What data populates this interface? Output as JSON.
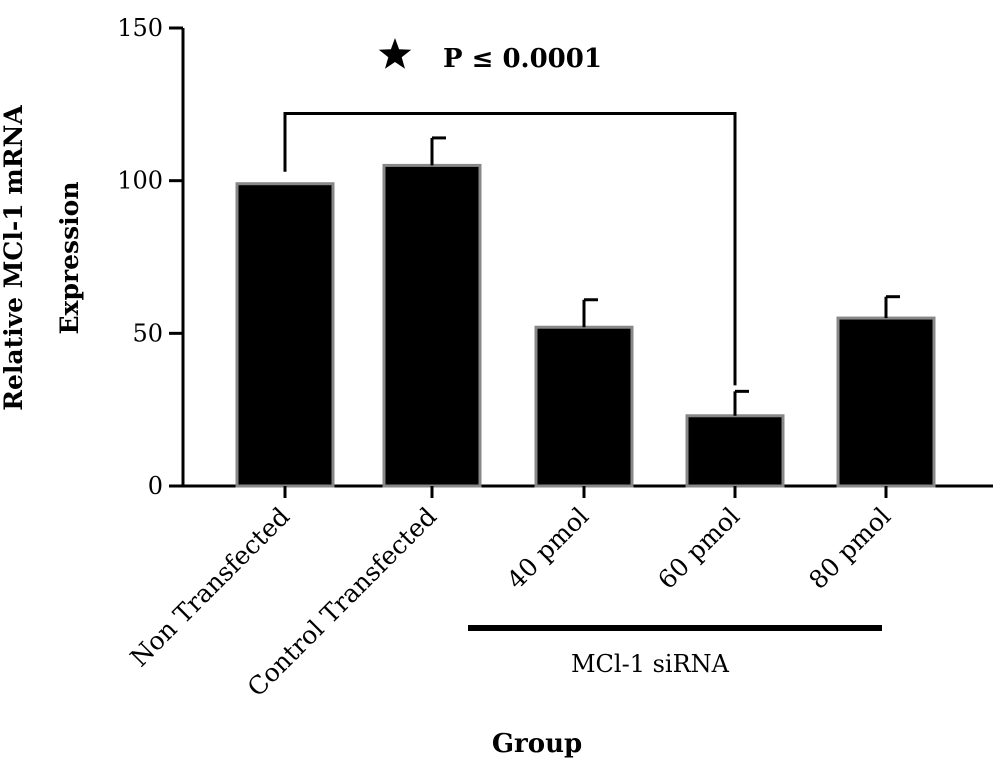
{
  "chart_data": {
    "type": "bar",
    "categories": [
      "Non Transfected",
      "Control Transfected",
      "40 pmol",
      "60 pmol",
      "80 pmol"
    ],
    "values": [
      99,
      105,
      52,
      23,
      55
    ],
    "errors": [
      0,
      9,
      9,
      8,
      7
    ],
    "xlabel": "Group",
    "ylabel_lines": [
      "Relative MCl-1 mRNA",
      "Expression"
    ],
    "ylim": [
      0,
      150
    ],
    "yticks": [
      0,
      50,
      100,
      150
    ],
    "grid": false,
    "annotation": {
      "text": "P ≤ 0.0001",
      "from_category": "Non Transfected",
      "to_category": "60 pmol",
      "bracket_value": 122
    },
    "category_group": {
      "label": "MCl-1 siRNA",
      "categories": [
        "40 pmol",
        "60 pmol",
        "80 pmol"
      ]
    }
  }
}
